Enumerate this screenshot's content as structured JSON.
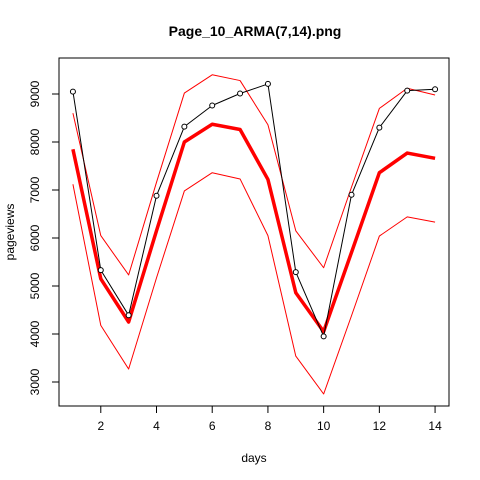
{
  "chart_data": {
    "type": "line",
    "title": "Page_10_ARMA(7,14).png",
    "xlabel": "days",
    "ylabel": "pageviews",
    "xlim": [
      0.5,
      14.5
    ],
    "ylim": [
      2500,
      9750
    ],
    "x_ticks": [
      2,
      4,
      6,
      8,
      10,
      12,
      14
    ],
    "y_ticks": [
      3000,
      4000,
      5000,
      6000,
      7000,
      8000,
      9000
    ],
    "grid": false,
    "legend": "none",
    "x": [
      1,
      2,
      3,
      4,
      5,
      6,
      7,
      8,
      9,
      10,
      11,
      12,
      13,
      14
    ],
    "series": [
      {
        "role": "observed",
        "color": "#000000",
        "style": "line-with-open-circles",
        "values": [
          9050,
          5330,
          4390,
          6880,
          8320,
          8760,
          9010,
          9210,
          5290,
          3950,
          6900,
          8300,
          9070,
          9100
        ]
      },
      {
        "role": "forecast",
        "color": "#ff0000",
        "style": "thick-line",
        "values": [
          7850,
          5150,
          4250,
          6150,
          8000,
          8370,
          8260,
          7220,
          4860,
          4050,
          5700,
          7360,
          7770,
          7660
        ]
      },
      {
        "role": "upper-bound",
        "color": "#ff0000",
        "style": "thin-line",
        "values": [
          8600,
          6050,
          5230,
          7160,
          9020,
          9400,
          9280,
          8360,
          6150,
          5380,
          7060,
          8700,
          9120,
          8980
        ]
      },
      {
        "role": "lower-bound",
        "color": "#ff0000",
        "style": "thin-line",
        "values": [
          7120,
          4180,
          3270,
          5170,
          6980,
          7360,
          7230,
          6050,
          3540,
          2750,
          4380,
          6040,
          6440,
          6330
        ]
      }
    ]
  }
}
